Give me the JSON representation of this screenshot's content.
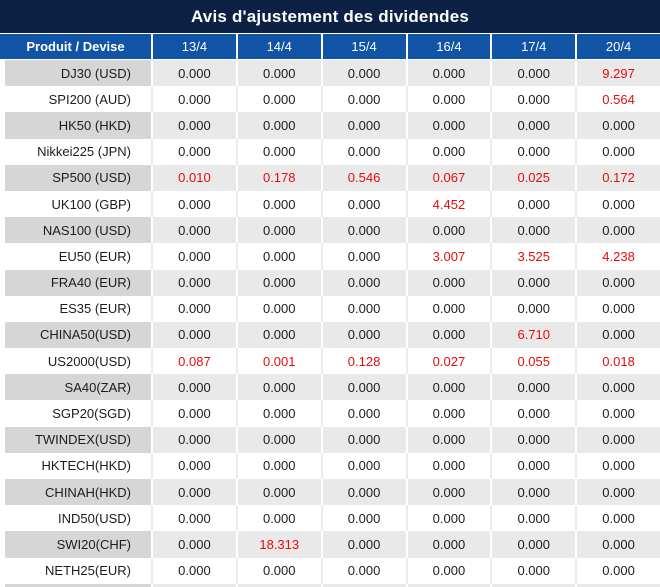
{
  "title": "Avis d'ajustement des dividendes",
  "table": {
    "product_header": "Produit / Devise",
    "date_headers": [
      "13/4",
      "14/4",
      "15/4",
      "16/4",
      "17/4",
      "20/4"
    ],
    "rows": [
      {
        "product": "DJ30 (USD)",
        "values": [
          "0.000",
          "0.000",
          "0.000",
          "0.000",
          "0.000",
          "9.297"
        ],
        "red": [
          false,
          false,
          false,
          false,
          false,
          true
        ]
      },
      {
        "product": "SPI200 (AUD)",
        "values": [
          "0.000",
          "0.000",
          "0.000",
          "0.000",
          "0.000",
          "0.564"
        ],
        "red": [
          false,
          false,
          false,
          false,
          false,
          true
        ]
      },
      {
        "product": "HK50 (HKD)",
        "values": [
          "0.000",
          "0.000",
          "0.000",
          "0.000",
          "0.000",
          "0.000"
        ],
        "red": [
          false,
          false,
          false,
          false,
          false,
          false
        ]
      },
      {
        "product": "Nikkei225 (JPN)",
        "values": [
          "0.000",
          "0.000",
          "0.000",
          "0.000",
          "0.000",
          "0.000"
        ],
        "red": [
          false,
          false,
          false,
          false,
          false,
          false
        ]
      },
      {
        "product": "SP500 (USD)",
        "values": [
          "0.010",
          "0.178",
          "0.546",
          "0.067",
          "0.025",
          "0.172"
        ],
        "red": [
          true,
          true,
          true,
          true,
          true,
          true
        ]
      },
      {
        "product": "UK100 (GBP)",
        "values": [
          "0.000",
          "0.000",
          "0.000",
          "4.452",
          "0.000",
          "0.000"
        ],
        "red": [
          false,
          false,
          false,
          true,
          false,
          false
        ]
      },
      {
        "product": "NAS100 (USD)",
        "values": [
          "0.000",
          "0.000",
          "0.000",
          "0.000",
          "0.000",
          "0.000"
        ],
        "red": [
          false,
          false,
          false,
          false,
          false,
          false
        ]
      },
      {
        "product": "EU50 (EUR)",
        "values": [
          "0.000",
          "0.000",
          "0.000",
          "3.007",
          "3.525",
          "4.238"
        ],
        "red": [
          false,
          false,
          false,
          true,
          true,
          true
        ]
      },
      {
        "product": "FRA40 (EUR)",
        "values": [
          "0.000",
          "0.000",
          "0.000",
          "0.000",
          "0.000",
          "0.000"
        ],
        "red": [
          false,
          false,
          false,
          false,
          false,
          false
        ]
      },
      {
        "product": "ES35 (EUR)",
        "values": [
          "0.000",
          "0.000",
          "0.000",
          "0.000",
          "0.000",
          "0.000"
        ],
        "red": [
          false,
          false,
          false,
          false,
          false,
          false
        ]
      },
      {
        "product": "CHINA50(USD)",
        "values": [
          "0.000",
          "0.000",
          "0.000",
          "0.000",
          "6.710",
          "0.000"
        ],
        "red": [
          false,
          false,
          false,
          false,
          true,
          false
        ]
      },
      {
        "product": "US2000(USD)",
        "values": [
          "0.087",
          "0.001",
          "0.128",
          "0.027",
          "0.055",
          "0.018"
        ],
        "red": [
          true,
          true,
          true,
          true,
          true,
          true
        ]
      },
      {
        "product": "SA40(ZAR)",
        "values": [
          "0.000",
          "0.000",
          "0.000",
          "0.000",
          "0.000",
          "0.000"
        ],
        "red": [
          false,
          false,
          false,
          false,
          false,
          false
        ]
      },
      {
        "product": "SGP20(SGD)",
        "values": [
          "0.000",
          "0.000",
          "0.000",
          "0.000",
          "0.000",
          "0.000"
        ],
        "red": [
          false,
          false,
          false,
          false,
          false,
          false
        ]
      },
      {
        "product": "TWINDEX(USD)",
        "values": [
          "0.000",
          "0.000",
          "0.000",
          "0.000",
          "0.000",
          "0.000"
        ],
        "red": [
          false,
          false,
          false,
          false,
          false,
          false
        ]
      },
      {
        "product": "HKTECH(HKD)",
        "values": [
          "0.000",
          "0.000",
          "0.000",
          "0.000",
          "0.000",
          "0.000"
        ],
        "red": [
          false,
          false,
          false,
          false,
          false,
          false
        ]
      },
      {
        "product": "CHINAH(HKD)",
        "values": [
          "0.000",
          "0.000",
          "0.000",
          "0.000",
          "0.000",
          "0.000"
        ],
        "red": [
          false,
          false,
          false,
          false,
          false,
          false
        ]
      },
      {
        "product": "IND50(USD)",
        "values": [
          "0.000",
          "0.000",
          "0.000",
          "0.000",
          "0.000",
          "0.000"
        ],
        "red": [
          false,
          false,
          false,
          false,
          false,
          false
        ]
      },
      {
        "product": "SWI20(CHF)",
        "values": [
          "0.000",
          "18.313",
          "0.000",
          "0.000",
          "0.000",
          "0.000"
        ],
        "red": [
          false,
          true,
          false,
          false,
          false,
          false
        ]
      },
      {
        "product": "NETH25(EUR)",
        "values": [
          "0.000",
          "0.000",
          "0.000",
          "0.000",
          "0.000",
          "0.000"
        ],
        "red": [
          false,
          false,
          false,
          false,
          false,
          false
        ]
      }
    ]
  },
  "colors": {
    "title_bg": "#0d2145",
    "header_bg": "#1154a5",
    "row_alt_product_bg": "#d6d6d6",
    "row_alt_value_bg": "#e9e9e9",
    "row_white_bg": "#ffffff",
    "value_red": "#e60c0c",
    "value_black": "#1c1c1c"
  }
}
